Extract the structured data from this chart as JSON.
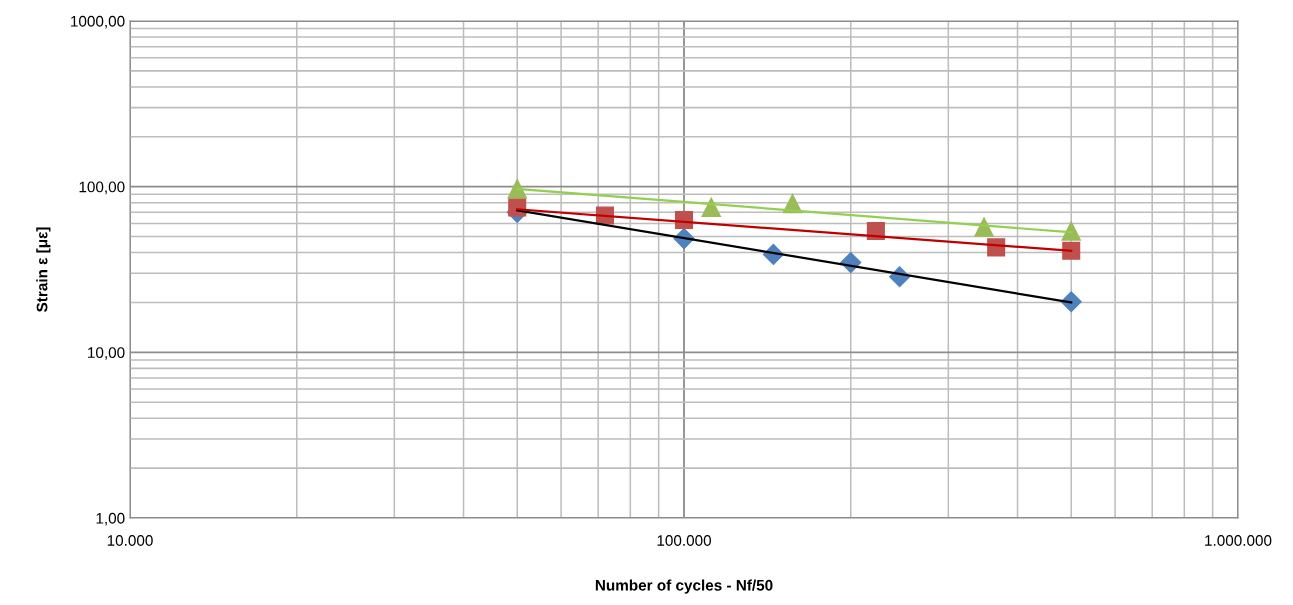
{
  "chart_data": {
    "type": "scatter",
    "xlabel": "Number of cycles - Nf/50",
    "ylabel": "Strain ε [με]",
    "log": "xy",
    "grid": true,
    "xlim": [
      10000,
      1000000
    ],
    "ylim": [
      1,
      1000
    ],
    "xticks": [
      {
        "value": 10000,
        "label": "10.000"
      },
      {
        "value": 100000,
        "label": "100.000"
      },
      {
        "value": 1000000,
        "label": "1.000.000"
      }
    ],
    "yticks": [
      {
        "value": 1,
        "label": "1,00"
      },
      {
        "value": 10,
        "label": "10,00"
      },
      {
        "value": 100,
        "label": "100,00"
      },
      {
        "value": 1000,
        "label": "1000,00"
      }
    ],
    "series": [
      {
        "marker": "diamond",
        "color": "#4f81bd",
        "x": [
          50000,
          100000,
          145000,
          200000,
          245000,
          500000
        ],
        "values": [
          70,
          48.6,
          39,
          34.8,
          28.6,
          20.2
        ]
      },
      {
        "marker": "square",
        "color": "#c0504d",
        "x": [
          50000,
          72000,
          100000,
          222000,
          366000,
          500000
        ],
        "values": [
          75,
          67,
          63,
          54,
          43,
          41
        ]
      },
      {
        "marker": "triangle",
        "color": "#9bbb59",
        "x": [
          50000,
          112000,
          157000,
          348000,
          500000
        ],
        "values": [
          97,
          75,
          79,
          57,
          54
        ]
      },
      {
        "type": "line",
        "marker": "none",
        "color": "#000000",
        "x": [
          50000,
          500000
        ],
        "values": [
          72,
          20
        ]
      },
      {
        "type": "line",
        "marker": "none",
        "color": "#c00000",
        "x": [
          50000,
          500000
        ],
        "values": [
          73,
          41
        ]
      },
      {
        "type": "line",
        "marker": "none",
        "color": "#92d050",
        "x": [
          50000,
          500000
        ],
        "values": [
          97,
          53
        ]
      }
    ]
  }
}
